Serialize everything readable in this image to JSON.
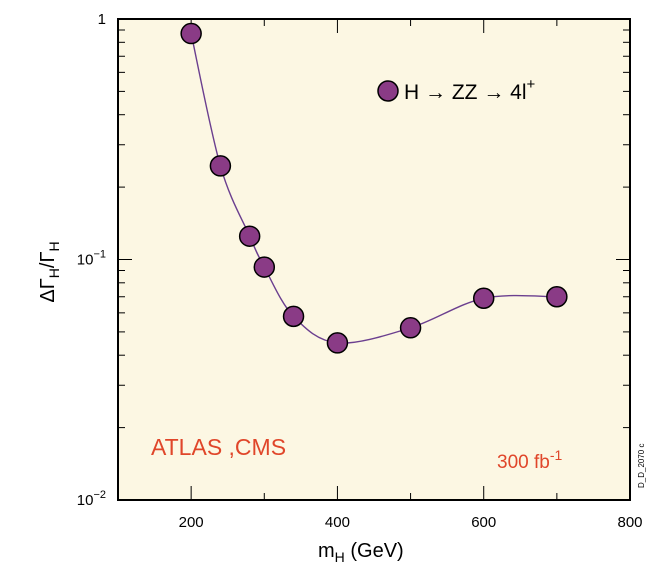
{
  "chart_data": {
    "type": "line",
    "x_axis": {
      "label_main": "m",
      "label_sub": "H",
      "label_unit": " (GeV)",
      "range": [
        100,
        800
      ],
      "ticks": [
        200,
        400,
        600,
        800
      ],
      "tick_labels": [
        "200",
        "400",
        "600",
        "800"
      ]
    },
    "y_axis": {
      "scale": "log",
      "label_main": "ΔΓ",
      "label_sub1": "H",
      "label_mid": "/Γ",
      "label_sub2": "H",
      "range": [
        0.01,
        1
      ],
      "ticks": [
        {
          "value": 1,
          "base": "1",
          "exp": ""
        },
        {
          "value": 0.1,
          "base": "10",
          "exp": "−1"
        },
        {
          "value": 0.01,
          "base": "10",
          "exp": "−2"
        }
      ]
    },
    "series": [
      {
        "name": "H → ZZ → 4l",
        "name_sup": "+",
        "marker_color": "#8a3b86",
        "curve_color": "#6b3f8f",
        "x": [
          200,
          240,
          280,
          300,
          340,
          400,
          500,
          600,
          700
        ],
        "y": [
          0.87,
          0.245,
          0.125,
          0.093,
          0.058,
          0.045,
          0.052,
          0.069,
          0.07
        ]
      }
    ],
    "annotations": {
      "experiments": "ATLAS ,CMS",
      "lumi_main": "300 fb",
      "lumi_sup": "-1",
      "side_code": "D_D_2070 c"
    },
    "plot_background": "#fcf7e3",
    "legend_position": "top-right"
  }
}
